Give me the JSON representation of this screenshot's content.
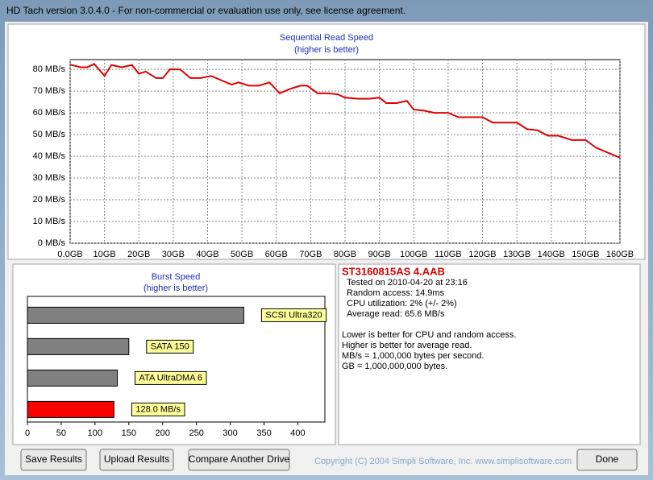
{
  "window": {
    "title": "HD Tach version 3.0.4.0  - For non-commercial or evaluation use only, see license agreement."
  },
  "chart_data": [
    {
      "type": "line",
      "title": "Sequential Read Speed",
      "subtitle": "(higher is better)",
      "color": "#e00000",
      "grid": true,
      "x": [
        0,
        3,
        5,
        7,
        10,
        12,
        15,
        18,
        20,
        22,
        25,
        27,
        29,
        32,
        35,
        38,
        41,
        44,
        47,
        49,
        52,
        55,
        58,
        61,
        64,
        67,
        69,
        72,
        75,
        78,
        80,
        84,
        87,
        90,
        92,
        95,
        98,
        100,
        103,
        106,
        110,
        113,
        117,
        120,
        123,
        127,
        130,
        133,
        136,
        139,
        142,
        146,
        150,
        153,
        156,
        159,
        160
      ],
      "values": [
        82.2,
        81,
        81,
        82.5,
        77,
        82,
        81,
        82,
        78,
        79,
        76,
        76,
        80,
        80,
        76,
        76,
        77,
        75,
        73,
        74,
        72.5,
        72.5,
        74,
        69,
        71,
        72.5,
        72.5,
        69,
        69,
        68.5,
        67,
        66.5,
        66.5,
        67,
        64.5,
        64.5,
        65.5,
        61.5,
        61,
        60,
        60,
        58,
        58,
        58,
        55.5,
        55.5,
        55.5,
        52.5,
        52,
        49.5,
        49.5,
        47.5,
        47.5,
        44,
        42,
        40,
        39.5
      ],
      "xlim": [
        0,
        160
      ],
      "xticks": [
        {
          "value": 0,
          "label": "0.0GB"
        },
        {
          "value": 10,
          "label": "10GB"
        },
        {
          "value": 20,
          "label": "20GB"
        },
        {
          "value": 30,
          "label": "30GB"
        },
        {
          "value": 40,
          "label": "40GB"
        },
        {
          "value": 50,
          "label": "50GB"
        },
        {
          "value": 60,
          "label": "60GB"
        },
        {
          "value": 70,
          "label": "70GB"
        },
        {
          "value": 80,
          "label": "80GB"
        },
        {
          "value": 90,
          "label": "90GB"
        },
        {
          "value": 100,
          "label": "100GB"
        },
        {
          "value": 110,
          "label": "110GB"
        },
        {
          "value": 120,
          "label": "120GB"
        },
        {
          "value": 130,
          "label": "130GB"
        },
        {
          "value": 140,
          "label": "140GB"
        },
        {
          "value": 150,
          "label": "150GB"
        },
        {
          "value": 160,
          "label": "160GB"
        }
      ],
      "ylim": [
        0,
        84.5
      ],
      "yticks": [
        {
          "value": 0,
          "label": "0 MB/s"
        },
        {
          "value": 10,
          "label": "10 MB/s"
        },
        {
          "value": 20,
          "label": "20 MB/s"
        },
        {
          "value": 30,
          "label": "30 MB/s"
        },
        {
          "value": 40,
          "label": "40 MB/s"
        },
        {
          "value": 50,
          "label": "50 MB/s"
        },
        {
          "value": 60,
          "label": "60 MB/s"
        },
        {
          "value": 70,
          "label": "70 MB/s"
        },
        {
          "value": 80,
          "label": "80 MB/s"
        }
      ]
    },
    {
      "type": "hbar",
      "title": "Burst Speed",
      "subtitle": "(higher is better)",
      "categories": [
        "SCSI Ultra320",
        "SATA 150",
        "ATA UltraDMA 6",
        null
      ],
      "values": [
        320,
        150,
        133,
        128
      ],
      "value_labels": [
        null,
        null,
        null,
        "128.0 MB/s"
      ],
      "colors": [
        "#808080",
        "#808080",
        "#808080",
        "#ff0000"
      ],
      "xlim": [
        0,
        440
      ],
      "xticks": [
        0,
        50,
        100,
        150,
        200,
        250,
        300,
        350,
        400
      ]
    }
  ],
  "info": {
    "drive": "ST3160815AS  4.AAB",
    "lines": [
      "Tested on 2010-04-20 at 23:16",
      "Random access: 14.9ms",
      "CPU utilization: 2% (+/- 2%)",
      "Average read: 65.6 MB/s"
    ],
    "notes": [
      "Lower is better for CPU and random access.",
      "Higher is better for average read.",
      "MB/s = 1,000,000 bytes per second.",
      "GB = 1,000,000,000 bytes."
    ]
  },
  "buttons": [
    "Save Results",
    "Upload Results",
    "Compare Another Drive",
    "Done"
  ],
  "copyright": "Copyright (C) 2004 Simpli Software, Inc. www.simplisoftware.com"
}
